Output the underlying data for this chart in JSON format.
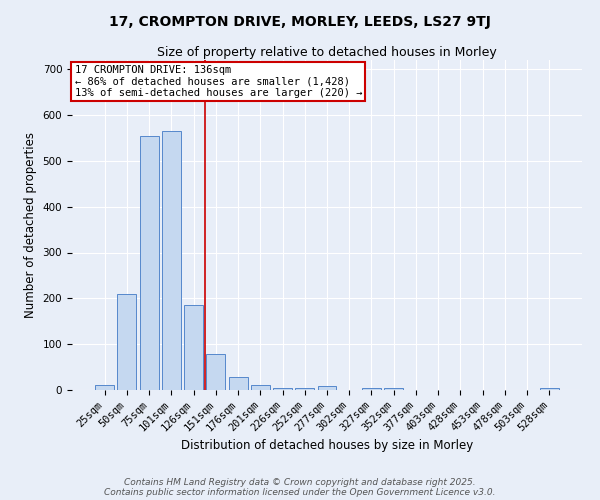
{
  "title_line1": "17, CROMPTON DRIVE, MORLEY, LEEDS, LS27 9TJ",
  "title_line2": "Size of property relative to detached houses in Morley",
  "xlabel": "Distribution of detached houses by size in Morley",
  "ylabel": "Number of detached properties",
  "bar_color": "#c5d8f0",
  "bar_edge_color": "#5588cc",
  "background_color": "#e8eef8",
  "grid_color": "#ffffff",
  "categories": [
    "25sqm",
    "50sqm",
    "75sqm",
    "101sqm",
    "126sqm",
    "151sqm",
    "176sqm",
    "201sqm",
    "226sqm",
    "252sqm",
    "277sqm",
    "302sqm",
    "327sqm",
    "352sqm",
    "377sqm",
    "403sqm",
    "428sqm",
    "453sqm",
    "478sqm",
    "503sqm",
    "528sqm"
  ],
  "values": [
    10,
    210,
    555,
    565,
    185,
    78,
    28,
    12,
    5,
    5,
    8,
    0,
    5,
    5,
    0,
    0,
    0,
    0,
    0,
    0,
    5
  ],
  "ylim": [
    0,
    720
  ],
  "yticks": [
    0,
    100,
    200,
    300,
    400,
    500,
    600,
    700
  ],
  "property_line_x": 4.5,
  "annotation_line1": "17 CROMPTON DRIVE: 136sqm",
  "annotation_line2": "← 86% of detached houses are smaller (1,428)",
  "annotation_line3": "13% of semi-detached houses are larger (220) →",
  "footer_line1": "Contains HM Land Registry data © Crown copyright and database right 2025.",
  "footer_line2": "Contains public sector information licensed under the Open Government Licence v3.0.",
  "red_line_color": "#cc0000",
  "annotation_box_color": "#ffffff",
  "annotation_box_edge_color": "#cc0000",
  "title_fontsize": 10,
  "subtitle_fontsize": 9,
  "axis_label_fontsize": 8.5,
  "tick_fontsize": 7.5,
  "annotation_fontsize": 7.5,
  "footer_fontsize": 6.5
}
